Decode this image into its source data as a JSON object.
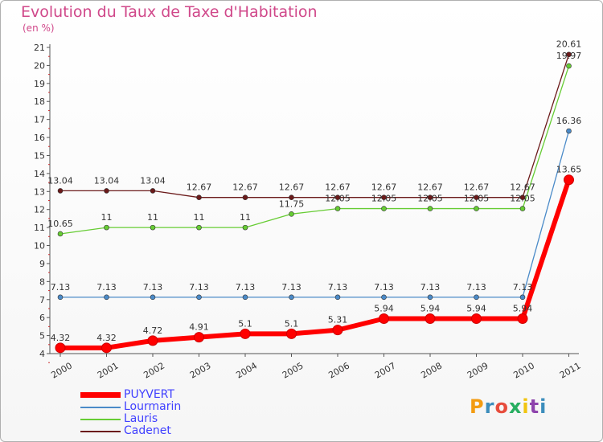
{
  "chart_data": {
    "type": "line",
    "title": "Evolution du Taux de Taxe d'Habitation",
    "subtitle": "(en %)",
    "categories": [
      "2000",
      "2001",
      "2002",
      "2003",
      "2004",
      "2005",
      "2006",
      "2007",
      "2008",
      "2009",
      "2010",
      "2011"
    ],
    "ylim": [
      4,
      21
    ],
    "yticks": [
      "4",
      "5",
      "6",
      "7",
      "8",
      "9",
      "10",
      "11",
      "12",
      "13",
      "14",
      "15",
      "16",
      "17",
      "18",
      "19",
      "20",
      "21"
    ],
    "grid": false,
    "legend_position": "bottom-left",
    "series": [
      {
        "name": "PUYVERT",
        "color": "#ff0000",
        "values": [
          4.32,
          4.32,
          4.72,
          4.91,
          5.1,
          5.1,
          5.31,
          5.94,
          5.94,
          5.94,
          5.94,
          13.65
        ],
        "labels": [
          "4.32",
          "4.32",
          "4.72",
          "4.91",
          "5.1",
          "5.1",
          "5.31",
          "5.94",
          "5.94",
          "5.94",
          "5.94",
          "13.65"
        ]
      },
      {
        "name": "Lourmarin",
        "color": "#4a8ac8",
        "values": [
          7.13,
          7.13,
          7.13,
          7.13,
          7.13,
          7.13,
          7.13,
          7.13,
          7.13,
          7.13,
          7.13,
          16.36
        ],
        "labels": [
          "7.13",
          "7.13",
          "7.13",
          "7.13",
          "7.13",
          "7.13",
          "7.13",
          "7.13",
          "7.13",
          "7.13",
          "7.13",
          "16.36"
        ]
      },
      {
        "name": "Lauris",
        "color": "#66cc33",
        "values": [
          10.65,
          11,
          11,
          11,
          11,
          11.75,
          12.05,
          12.05,
          12.05,
          12.05,
          12.05,
          19.97
        ],
        "labels": [
          "10.65",
          "11",
          "11",
          "11",
          "11",
          "11.75",
          "12.05",
          "12.05",
          "12.05",
          "12.05",
          "12.05",
          "19.97"
        ]
      },
      {
        "name": "Cadenet",
        "color": "#6b1a1a",
        "values": [
          13.04,
          13.04,
          13.04,
          12.67,
          12.67,
          12.67,
          12.67,
          12.67,
          12.67,
          12.67,
          12.67,
          20.61
        ],
        "labels": [
          "13.04",
          "13.04",
          "13.04",
          "12.67",
          "12.67",
          "12.67",
          "12.67",
          "12.67",
          "12.67",
          "12.67",
          "12.67",
          "20.61"
        ]
      }
    ]
  },
  "brand": {
    "logo_text": "Proxiti",
    "colors": [
      "#f39c12",
      "#3c8dbc",
      "#e74c3c",
      "#27ae60",
      "#f1c40f",
      "#8e44ad",
      "#3c8dbc"
    ]
  }
}
